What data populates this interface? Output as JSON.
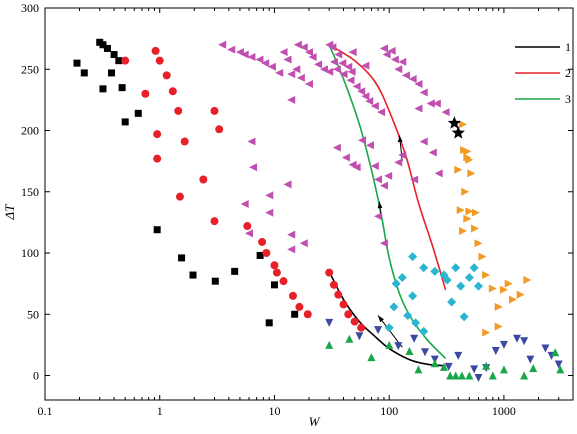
{
  "chart_data": {
    "type": "scatter",
    "xlabel": "W",
    "ylabel": "ΔT",
    "xscale": "log",
    "xlim": [
      0.1,
      4000
    ],
    "ylim": [
      -20,
      300
    ],
    "xticks": [
      {
        "value": 0.1,
        "label": "0.1"
      },
      {
        "value": 1,
        "label": "1"
      },
      {
        "value": 10,
        "label": "10"
      },
      {
        "value": 100,
        "label": "100"
      },
      {
        "value": 1000,
        "label": "1000"
      }
    ],
    "yticks": [
      0,
      50,
      100,
      150,
      200,
      250,
      300
    ],
    "legend": {
      "position": "top-right",
      "entries": [
        {
          "label": "1",
          "color": "#000000"
        },
        {
          "label": "2",
          "color": "#e8202a"
        },
        {
          "label": "3",
          "color": "#1aa64a"
        }
      ]
    },
    "scatter_series": [
      {
        "marker": "square",
        "color": "#000000",
        "points": [
          [
            0.19,
            255
          ],
          [
            0.22,
            247
          ],
          [
            0.3,
            272
          ],
          [
            0.32,
            270
          ],
          [
            0.35,
            267
          ],
          [
            0.4,
            262
          ],
          [
            0.44,
            257
          ],
          [
            0.32,
            234
          ],
          [
            0.38,
            247
          ],
          [
            0.47,
            235
          ],
          [
            0.5,
            207
          ],
          [
            0.65,
            214
          ],
          [
            0.95,
            119
          ],
          [
            1.55,
            96
          ],
          [
            1.95,
            82
          ],
          [
            3.05,
            77
          ],
          [
            4.5,
            85
          ],
          [
            7.5,
            98
          ],
          [
            10,
            74
          ],
          [
            15,
            50
          ],
          [
            9,
            43
          ]
        ]
      },
      {
        "marker": "circle",
        "color": "#e8202a",
        "points": [
          [
            0.5,
            257
          ],
          [
            0.75,
            230
          ],
          [
            0.92,
            265
          ],
          [
            1,
            257
          ],
          [
            1.15,
            245
          ],
          [
            1.3,
            232
          ],
          [
            1.45,
            216
          ],
          [
            1.65,
            191
          ],
          [
            2.4,
            160
          ],
          [
            3,
            216
          ],
          [
            3.3,
            201
          ],
          [
            0.95,
            197
          ],
          [
            0.95,
            177
          ],
          [
            1.5,
            146
          ],
          [
            3,
            126
          ],
          [
            5.8,
            122
          ],
          [
            7.8,
            109
          ],
          [
            8.5,
            100
          ],
          [
            10,
            90
          ],
          [
            10.5,
            84
          ],
          [
            12,
            77
          ],
          [
            14.5,
            65
          ],
          [
            16.5,
            56
          ],
          [
            19.5,
            50
          ],
          [
            30,
            84
          ],
          [
            33,
            74
          ],
          [
            36,
            66
          ],
          [
            40,
            58
          ],
          [
            44,
            50
          ],
          [
            50,
            44
          ],
          [
            57,
            39
          ]
        ]
      },
      {
        "marker": "triangle-left",
        "color": "#c04fb1",
        "points": [
          [
            3.5,
            270
          ],
          [
            4.2,
            266
          ],
          [
            5,
            264
          ],
          [
            5.5,
            262
          ],
          [
            6.3,
            260
          ],
          [
            7.4,
            258
          ],
          [
            8.3,
            255
          ],
          [
            9.5,
            252
          ],
          [
            11,
            247
          ],
          [
            12,
            264
          ],
          [
            13,
            258
          ],
          [
            14,
            246
          ],
          [
            15.5,
            250
          ],
          [
            17,
            243
          ],
          [
            20,
            238
          ],
          [
            16,
            270
          ],
          [
            18,
            268
          ],
          [
            20,
            264
          ],
          [
            21.5,
            260
          ],
          [
            24,
            254
          ],
          [
            27,
            250
          ],
          [
            30,
            248
          ],
          [
            33,
            256
          ],
          [
            35,
            250
          ],
          [
            40,
            246
          ],
          [
            46,
            241
          ],
          [
            52,
            236
          ],
          [
            57,
            232
          ],
          [
            62,
            228
          ],
          [
            67,
            224
          ],
          [
            75,
            220
          ],
          [
            85,
            215
          ],
          [
            30,
            270
          ],
          [
            32,
            268
          ],
          [
            36,
            262
          ],
          [
            39,
            255
          ],
          [
            44,
            252
          ],
          [
            47,
            248
          ],
          [
            48,
            264
          ],
          [
            62,
            253
          ],
          [
            90,
            267
          ],
          [
            95,
            262
          ],
          [
            105,
            265
          ],
          [
            112,
            258
          ],
          [
            120,
            250
          ],
          [
            130,
            256
          ],
          [
            140,
            245
          ],
          [
            160,
            242
          ],
          [
            180,
            238
          ],
          [
            200,
            231
          ],
          [
            230,
            222
          ],
          [
            260,
            222
          ],
          [
            310,
            215
          ],
          [
            35,
            186
          ],
          [
            42,
            178
          ],
          [
            48,
            172
          ],
          [
            52,
            170
          ],
          [
            58,
            192
          ],
          [
            68,
            188
          ],
          [
            75,
            171
          ],
          [
            80,
            160
          ],
          [
            90,
            155
          ],
          [
            98,
            163
          ],
          [
            120,
            174
          ],
          [
            165,
            160
          ],
          [
            180,
            218
          ],
          [
            200,
            191
          ],
          [
            240,
            182
          ],
          [
            270,
            165
          ],
          [
            14,
            225
          ],
          [
            13,
            156
          ],
          [
            6.3,
            191
          ],
          [
            6.5,
            170
          ],
          [
            5.5,
            140
          ],
          [
            9,
            147
          ],
          [
            9,
            133
          ],
          [
            6,
            116
          ],
          [
            14,
            115
          ],
          [
            14,
            103
          ],
          [
            18,
            108
          ],
          [
            80,
            130
          ],
          [
            90,
            108
          ],
          [
            130,
            180
          ],
          [
            230,
            222
          ]
        ]
      },
      {
        "marker": "triangle-right",
        "color": "#f39a25",
        "points": [
          [
            400,
            168
          ],
          [
            450,
            184
          ],
          [
            480,
            178
          ],
          [
            500,
            176
          ],
          [
            460,
            150
          ],
          [
            420,
            135
          ],
          [
            440,
            118
          ],
          [
            480,
            128
          ],
          [
            500,
            134
          ],
          [
            560,
            120
          ],
          [
            600,
            108
          ],
          [
            650,
            97
          ],
          [
            700,
            82
          ],
          [
            800,
            71
          ],
          [
            900,
            56
          ],
          [
            1000,
            70
          ],
          [
            1100,
            75
          ],
          [
            1200,
            62
          ],
          [
            1400,
            66
          ],
          [
            1600,
            78
          ],
          [
            900,
            40
          ],
          [
            700,
            35
          ],
          [
            440,
            205
          ],
          [
            480,
            183
          ],
          [
            520,
            165
          ],
          [
            570,
            133
          ]
        ]
      },
      {
        "marker": "diamond",
        "color": "#2ab6cf",
        "points": [
          [
            160,
            97
          ],
          [
            200,
            88
          ],
          [
            250,
            85
          ],
          [
            300,
            82
          ],
          [
            350,
            60
          ],
          [
            380,
            88
          ],
          [
            420,
            73
          ],
          [
            450,
            48
          ],
          [
            550,
            88
          ],
          [
            600,
            73
          ],
          [
            130,
            80
          ],
          [
            115,
            75
          ],
          [
            110,
            56
          ],
          [
            100,
            39
          ],
          [
            145,
            49
          ],
          [
            170,
            43
          ],
          [
            200,
            36
          ],
          [
            160,
            65
          ],
          [
            320,
            78
          ],
          [
            500,
            80
          ]
        ]
      },
      {
        "marker": "triangle-down",
        "color": "#3b4aa0",
        "points": [
          [
            30,
            43
          ],
          [
            55,
            32
          ],
          [
            80,
            37
          ],
          [
            120,
            24
          ],
          [
            165,
            30
          ],
          [
            205,
            19
          ],
          [
            250,
            13
          ],
          [
            330,
            7
          ],
          [
            400,
            16
          ],
          [
            550,
            5
          ],
          [
            600,
            -2
          ],
          [
            700,
            6
          ],
          [
            850,
            20
          ],
          [
            1000,
            25
          ],
          [
            1300,
            30
          ],
          [
            1500,
            28
          ],
          [
            1700,
            13
          ],
          [
            2300,
            22
          ],
          [
            2600,
            16
          ],
          [
            3000,
            9
          ]
        ]
      },
      {
        "marker": "triangle-up",
        "color": "#1aa64a",
        "points": [
          [
            30,
            25
          ],
          [
            45,
            30
          ],
          [
            70,
            15
          ],
          [
            100,
            25
          ],
          [
            150,
            20
          ],
          [
            180,
            5
          ],
          [
            250,
            10
          ],
          [
            300,
            7
          ],
          [
            340,
            0
          ],
          [
            380,
            0
          ],
          [
            430,
            0
          ],
          [
            500,
            0
          ],
          [
            700,
            8
          ],
          [
            800,
            0
          ],
          [
            1000,
            5
          ],
          [
            1500,
            0
          ],
          [
            1800,
            6
          ],
          [
            2800,
            19
          ],
          [
            3100,
            5
          ]
        ]
      },
      {
        "marker": "star",
        "color": "#000000",
        "points": [
          [
            370,
            206
          ],
          [
            400,
            198
          ]
        ]
      }
    ],
    "curves": [
      {
        "name": "1",
        "color": "#000000",
        "points": [
          [
            30,
            85
          ],
          [
            40,
            62
          ],
          [
            55,
            44
          ],
          [
            75,
            32
          ],
          [
            100,
            22
          ],
          [
            150,
            13
          ],
          [
            220,
            9
          ],
          [
            310,
            8
          ]
        ]
      },
      {
        "name": "2",
        "color": "#e8202a",
        "points": [
          [
            30,
            270
          ],
          [
            50,
            257
          ],
          [
            75,
            240
          ],
          [
            100,
            216
          ],
          [
            140,
            179
          ],
          [
            180,
            141
          ],
          [
            240,
            105
          ],
          [
            310,
            70
          ]
        ]
      },
      {
        "name": "3",
        "color": "#1aa64a",
        "points": [
          [
            30,
            270
          ],
          [
            40,
            242
          ],
          [
            55,
            205
          ],
          [
            70,
            168
          ],
          [
            85,
            132
          ],
          [
            100,
            96
          ],
          [
            125,
            65
          ],
          [
            160,
            45
          ],
          [
            220,
            28
          ],
          [
            310,
            14
          ]
        ]
      }
    ],
    "arrows": [
      {
        "color": "#000000",
        "from": [
          130,
          23
        ],
        "to": [
          80,
          49
        ]
      },
      {
        "color": "#000000",
        "from": [
          85,
          128
        ],
        "to": [
          82,
          142
        ]
      },
      {
        "color": "#000000",
        "from": [
          130,
          175
        ],
        "to": [
          123,
          196
        ]
      }
    ]
  }
}
